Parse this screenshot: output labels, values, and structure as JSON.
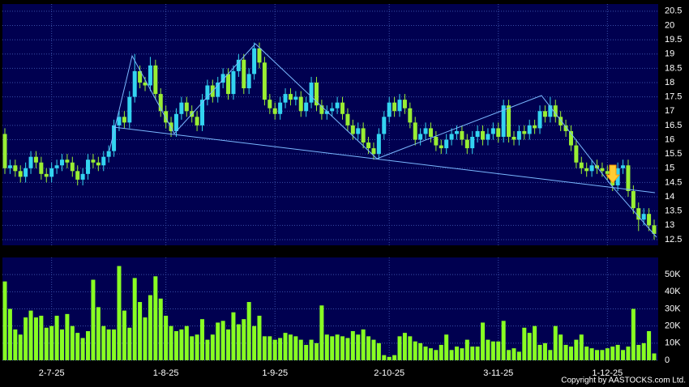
{
  "chart_data": {
    "type": "candlestick",
    "categories": [
      null,
      null,
      null,
      null,
      null,
      null,
      null,
      null,
      null,
      "2-7-25",
      null,
      null,
      null,
      null,
      null,
      null,
      null,
      null,
      null,
      null,
      null,
      null,
      null,
      null,
      null,
      null,
      null,
      null,
      null,
      null,
      null,
      "1-8-25",
      null,
      null,
      null,
      null,
      null,
      null,
      null,
      null,
      null,
      null,
      null,
      null,
      null,
      null,
      null,
      null,
      null,
      null,
      null,
      null,
      "1-9-25",
      null,
      null,
      null,
      null,
      null,
      null,
      null,
      null,
      null,
      null,
      null,
      null,
      null,
      null,
      null,
      null,
      null,
      null,
      null,
      null,
      null,
      "2-10-25",
      null,
      null,
      null,
      null,
      null,
      null,
      null,
      null,
      null,
      null,
      null,
      null,
      null,
      null,
      null,
      null,
      null,
      null,
      null,
      null,
      "3-11-25",
      null,
      null,
      null,
      null,
      null,
      null,
      null,
      null,
      null,
      null,
      null,
      null,
      null,
      null,
      null,
      null,
      null,
      null,
      null,
      null,
      "1-12-25",
      null,
      null,
      null,
      null,
      null,
      null,
      null,
      null,
      null
    ],
    "open": [
      16.2,
      15.0,
      15.1,
      14.9,
      14.7,
      15.0,
      15.4,
      15.2,
      14.8,
      14.7,
      15.0,
      15.1,
      15.3,
      15.2,
      14.9,
      14.6,
      14.8,
      15.3,
      15.2,
      15.1,
      15.4,
      15.6,
      16.5,
      16.8,
      16.6,
      17.5,
      18.4,
      18.0,
      17.9,
      18.6,
      17.6,
      17.0,
      16.6,
      16.3,
      16.9,
      17.3,
      17.0,
      16.8,
      16.5,
      17.4,
      17.9,
      17.5,
      18.0,
      18.3,
      17.6,
      18.4,
      18.8,
      17.8,
      18.3,
      19.2,
      18.7,
      17.4,
      17.1,
      16.9,
      17.3,
      17.6,
      17.4,
      17.5,
      17.0,
      17.3,
      18.0,
      17.2,
      16.9,
      17.0,
      17.1,
      17.3,
      16.9,
      16.5,
      16.2,
      16.4,
      15.9,
      15.7,
      15.5,
      16.2,
      16.8,
      17.3,
      17.0,
      17.4,
      17.1,
      16.6,
      16.0,
      16.2,
      16.4,
      16.1,
      15.8,
      15.7,
      16.0,
      16.2,
      16.3,
      16.0,
      15.7,
      16.1,
      16.3,
      16.0,
      16.2,
      16.4,
      16.1,
      17.2,
      16.1,
      16.0,
      16.3,
      16.2,
      16.5,
      16.4,
      17.0,
      16.8,
      17.2,
      16.8,
      16.5,
      16.3,
      15.8,
      15.2,
      15.0,
      14.9,
      15.1,
      15.0,
      14.9,
      14.8,
      14.4,
      15.0,
      15.1,
      14.2,
      13.6,
      13.2,
      13.4,
      13.0
    ],
    "high": [
      16.4,
      15.3,
      15.3,
      15.1,
      15.2,
      15.6,
      15.6,
      15.4,
      15.0,
      15.2,
      15.3,
      15.5,
      15.5,
      15.4,
      15.1,
      15.0,
      15.5,
      15.5,
      15.4,
      15.6,
      15.8,
      16.7,
      17.0,
      17.0,
      17.7,
      19.0,
      18.6,
      18.2,
      18.9,
      18.8,
      17.8,
      17.2,
      16.8,
      17.1,
      17.5,
      17.5,
      17.2,
      17.0,
      17.6,
      18.1,
      18.1,
      18.2,
      18.5,
      18.5,
      18.6,
      19.0,
      19.0,
      18.5,
      19.4,
      19.4,
      18.9,
      17.6,
      17.3,
      17.5,
      17.8,
      17.8,
      17.7,
      17.7,
      17.5,
      18.2,
      18.2,
      17.4,
      17.2,
      17.3,
      17.5,
      17.5,
      17.1,
      16.7,
      16.6,
      16.6,
      16.1,
      15.9,
      16.4,
      17.0,
      17.5,
      17.5,
      17.6,
      17.6,
      17.3,
      16.8,
      16.4,
      16.6,
      16.6,
      16.3,
      16.0,
      16.2,
      16.4,
      16.5,
      16.5,
      16.2,
      16.3,
      16.5,
      16.5,
      16.4,
      16.6,
      16.6,
      17.4,
      17.4,
      16.3,
      16.5,
      16.5,
      16.7,
      16.7,
      17.2,
      17.2,
      17.5,
      17.4,
      17.0,
      16.7,
      16.5,
      16.0,
      15.4,
      15.2,
      15.3,
      15.3,
      15.2,
      15.1,
      15.0,
      15.2,
      15.3,
      15.3,
      14.4,
      13.8,
      13.6,
      13.6,
      13.2
    ],
    "low": [
      14.8,
      14.8,
      14.7,
      14.5,
      14.5,
      14.8,
      15.0,
      14.6,
      14.5,
      14.5,
      14.8,
      14.9,
      15.0,
      14.7,
      14.4,
      14.4,
      14.6,
      15.0,
      14.9,
      14.9,
      15.2,
      15.4,
      16.3,
      16.4,
      16.4,
      17.3,
      17.8,
      17.7,
      17.7,
      17.4,
      16.8,
      16.4,
      16.1,
      16.1,
      16.7,
      16.8,
      16.6,
      16.3,
      16.3,
      17.2,
      17.3,
      17.3,
      17.8,
      17.4,
      17.4,
      18.2,
      17.6,
      17.6,
      18.1,
      18.5,
      17.2,
      16.9,
      16.7,
      16.7,
      17.1,
      17.2,
      17.2,
      16.8,
      16.8,
      17.1,
      17.0,
      16.7,
      16.7,
      16.8,
      16.9,
      16.7,
      16.3,
      16.0,
      16.0,
      15.7,
      15.5,
      15.3,
      15.3,
      16.0,
      16.6,
      16.8,
      16.8,
      16.9,
      16.4,
      15.8,
      15.8,
      16.0,
      15.9,
      15.6,
      15.5,
      15.5,
      15.8,
      16.0,
      15.8,
      15.5,
      15.5,
      15.9,
      15.8,
      15.8,
      16.0,
      15.9,
      15.9,
      15.9,
      15.8,
      15.8,
      16.0,
      16.0,
      16.2,
      16.2,
      16.6,
      16.6,
      16.6,
      16.3,
      16.1,
      15.6,
      15.0,
      14.8,
      14.7,
      14.7,
      14.8,
      14.7,
      14.6,
      14.2,
      14.2,
      14.8,
      14.0,
      13.4,
      12.8,
      13.0,
      12.8,
      12.5
    ],
    "close": [
      15.0,
      15.1,
      14.9,
      14.7,
      15.0,
      15.4,
      15.2,
      14.8,
      14.7,
      15.0,
      15.1,
      15.3,
      15.2,
      14.9,
      14.6,
      14.8,
      15.3,
      15.2,
      15.1,
      15.4,
      15.6,
      16.5,
      16.8,
      16.6,
      17.5,
      18.4,
      18.0,
      17.9,
      18.6,
      17.6,
      17.0,
      16.6,
      16.3,
      16.9,
      17.3,
      17.0,
      16.8,
      16.5,
      17.4,
      17.9,
      17.5,
      18.0,
      18.3,
      17.6,
      18.4,
      18.8,
      17.8,
      18.3,
      19.2,
      18.7,
      17.4,
      17.1,
      16.9,
      17.3,
      17.6,
      17.4,
      17.5,
      17.0,
      17.3,
      18.0,
      17.2,
      16.9,
      17.0,
      17.1,
      17.3,
      16.9,
      16.5,
      16.2,
      16.4,
      15.9,
      15.7,
      15.5,
      16.2,
      16.8,
      17.3,
      17.0,
      17.4,
      17.1,
      16.6,
      16.0,
      16.2,
      16.4,
      16.1,
      15.8,
      15.7,
      16.0,
      16.2,
      16.3,
      16.0,
      15.7,
      16.1,
      16.3,
      16.0,
      16.2,
      16.4,
      16.1,
      17.2,
      16.1,
      16.0,
      16.3,
      16.2,
      16.5,
      16.4,
      17.0,
      16.8,
      17.2,
      16.8,
      16.5,
      16.3,
      15.8,
      15.2,
      15.0,
      14.9,
      15.1,
      15.0,
      14.9,
      14.8,
      14.4,
      15.0,
      15.1,
      14.2,
      13.6,
      13.2,
      13.4,
      13.0,
      12.7
    ],
    "volume": [
      46000,
      30000,
      18000,
      15000,
      25000,
      29000,
      25000,
      26000,
      19000,
      20000,
      26000,
      18000,
      27000,
      20000,
      16000,
      13000,
      17000,
      47000,
      31000,
      20000,
      18000,
      18000,
      55000,
      29000,
      19000,
      48000,
      34000,
      25000,
      38000,
      49000,
      36000,
      26000,
      20000,
      17000,
      18000,
      20000,
      14000,
      15000,
      24000,
      12000,
      15000,
      22000,
      23000,
      18000,
      28000,
      21000,
      24000,
      34000,
      20000,
      26000,
      14000,
      14000,
      12000,
      13000,
      16000,
      15000,
      14000,
      12000,
      9000,
      12000,
      10000,
      32000,
      15000,
      14000,
      15000,
      14000,
      13000,
      17000,
      15000,
      18000,
      14000,
      12000,
      10000,
      3000,
      2000,
      3000,
      14000,
      16000,
      14000,
      11000,
      10000,
      8000,
      7000,
      6000,
      9000,
      15000,
      6000,
      8000,
      7000,
      12000,
      8000,
      8000,
      22000,
      12000,
      11000,
      11000,
      23000,
      6000,
      7000,
      5000,
      19000,
      16000,
      20000,
      9000,
      10000,
      6000,
      20000,
      15000,
      9000,
      8000,
      12000,
      15000,
      8000,
      7000,
      6000,
      6000,
      7000,
      8000,
      9000,
      6000,
      8000,
      30000,
      9000,
      10000,
      17000,
      4000
    ],
    "up_color": "#33d4f0",
    "down_color": "#99ee33",
    "volume_color": "#88ff22",
    "ylim": [
      12.3,
      20.75
    ],
    "yticks": [
      12.5,
      13,
      13.5,
      14,
      14.5,
      15,
      15.5,
      16,
      16.5,
      17,
      17.5,
      18,
      18.5,
      19,
      19.5,
      20,
      20.5
    ],
    "volume_ylim": [
      0,
      60000
    ],
    "volume_ticks": [
      0,
      {
        "value": 10000,
        "label": "10K"
      },
      {
        "value": 20000,
        "label": "20K"
      },
      {
        "value": 30000,
        "label": "30K"
      },
      {
        "value": 40000,
        "label": "40K"
      },
      {
        "value": 50000,
        "label": "50K"
      }
    ],
    "grid": true,
    "copyright": "Copyright by AASTOCKS.com Ltd."
  }
}
